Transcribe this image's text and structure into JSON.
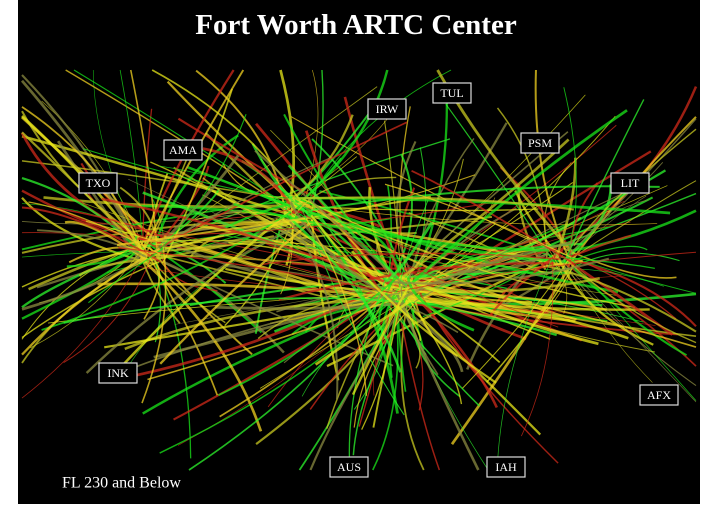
{
  "header": {
    "title": "Fort Worth ARTC Center"
  },
  "map": {
    "labels": [
      "IRW",
      "TUL",
      "PSM",
      "AMA",
      "TXO",
      "LIT",
      "INK",
      "AFX",
      "AUS",
      "IAH"
    ]
  },
  "footer": {
    "caption": "FL 230 and Below"
  }
}
